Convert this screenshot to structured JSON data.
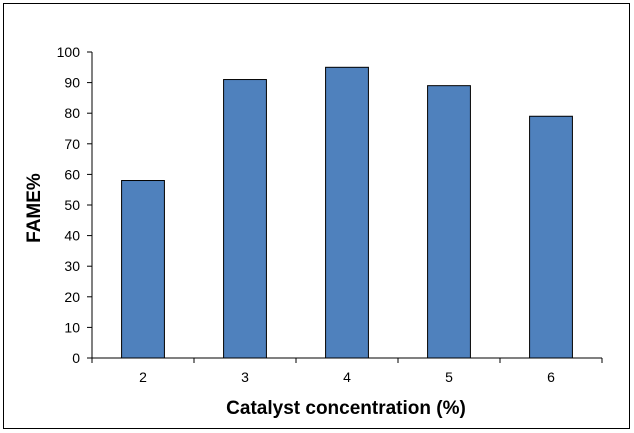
{
  "chart_data": {
    "type": "bar",
    "categories": [
      "2",
      "3",
      "4",
      "5",
      "6"
    ],
    "values": [
      58,
      91,
      95,
      89,
      79
    ],
    "title": "",
    "xlabel": "Catalyst concentration (%)",
    "ylabel": "FAME%",
    "ylim": [
      0,
      100
    ],
    "yticks": [
      "0",
      "10",
      "20",
      "30",
      "40",
      "50",
      "60",
      "70",
      "80",
      "90",
      "100"
    ],
    "grid": false,
    "legend": "none",
    "colors": {
      "bar_fill": "#4f81bd",
      "bar_stroke": "#000000",
      "axis": "#000000"
    }
  }
}
